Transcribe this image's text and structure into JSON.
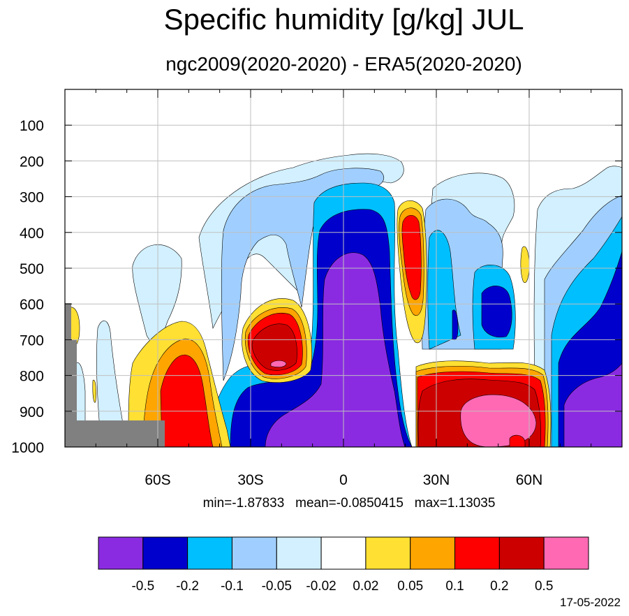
{
  "chart_data": {
    "type": "heatmap",
    "title": "Specific humidity [g/kg] JUL",
    "subtitle": "ngc2009(2020-2020) - ERA5(2020-2020)",
    "x_axis": {
      "range": [
        -90,
        90
      ],
      "ticks": [
        {
          "value": -60,
          "label": "60S"
        },
        {
          "value": -30,
          "label": "30S"
        },
        {
          "value": 0,
          "label": "0"
        },
        {
          "value": 30,
          "label": "30N"
        },
        {
          "value": 60,
          "label": "60N"
        }
      ]
    },
    "y_axis": {
      "range": [
        1000,
        0
      ],
      "ticks": [
        100,
        200,
        300,
        400,
        500,
        600,
        700,
        800,
        900,
        1000
      ]
    },
    "grid": true,
    "stats": {
      "min": "-1.87833",
      "mean": "-0.0850415",
      "max": "1.13035"
    },
    "colorbar": {
      "colors": [
        "#8a2be2",
        "#0000cd",
        "#00bfff",
        "#a0cfff",
        "#d2f0ff",
        "#ffffff",
        "#ffe033",
        "#ffa500",
        "#ff0000",
        "#cd0000",
        "#ff69b4"
      ],
      "levels": [
        "-0.5",
        "-0.2",
        "-0.1",
        "-0.05",
        "-0.02",
        "0.02",
        "0.05",
        "0.1",
        "0.2",
        "0.5"
      ]
    },
    "regions": [
      {
        "name": "southern-mid-latitude-positive",
        "lat": [
          -60,
          -40
        ],
        "pressure": [
          720,
          1000
        ],
        "value_class": "0.1 to 0.2"
      },
      {
        "name": "subtropical-south-positive-cell",
        "lat": [
          -28,
          -12
        ],
        "pressure": [
          620,
          800
        ],
        "value_class": "0.2 to 0.5"
      },
      {
        "name": "tropical-negative-core",
        "lat": [
          -20,
          15
        ],
        "pressure": [
          440,
          1000
        ],
        "value_class": "< -0.5"
      },
      {
        "name": "northern-subtropic-positive-column",
        "lat": [
          18,
          25
        ],
        "pressure": [
          340,
          560
        ],
        "value_class": "0.1 to 0.2"
      },
      {
        "name": "northern-lower-positive",
        "lat": [
          25,
          62
        ],
        "pressure": [
          790,
          1000
        ],
        "value_class": "0.2 to 0.5"
      },
      {
        "name": "northern-pink-core",
        "lat": [
          38,
          60
        ],
        "pressure": [
          850,
          1000
        ],
        "value_class": "> 0.5"
      },
      {
        "name": "high-latitude-negative",
        "lat": [
          65,
          90
        ],
        "pressure": [
          400,
          1000
        ],
        "value_class": "-0.5 to -0.2"
      }
    ]
  },
  "date": "17-05-2022"
}
